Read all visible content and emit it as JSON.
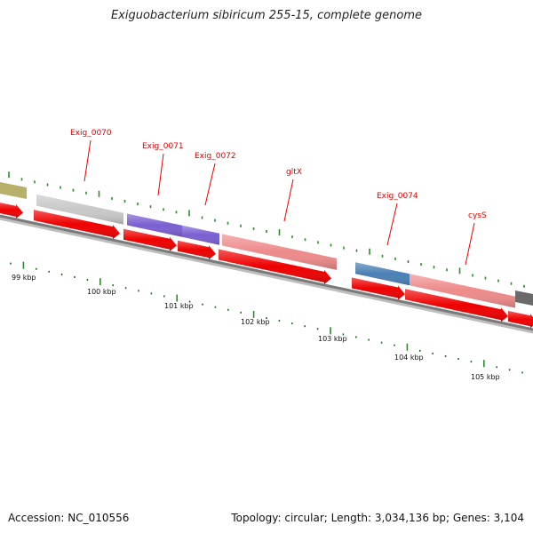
{
  "title": "Exiguobacterium sibiricum 255-15, complete genome",
  "footer": {
    "accession": "Accession: NC_010556",
    "summary": "Topology: circular; Length: 3,034,136 bp; Genes: 3,104"
  },
  "ticks": [
    {
      "label": "99 kbp"
    },
    {
      "label": "100 kbp"
    },
    {
      "label": "101 kbp"
    },
    {
      "label": "102 kbp"
    },
    {
      "label": "103 kbp"
    },
    {
      "label": "104 kbp"
    },
    {
      "label": "105 kbp"
    }
  ],
  "genes": [
    {
      "label": "Exig_0070",
      "color": "#c8c8c8"
    },
    {
      "label": "Exig_0071",
      "color": "#7a5fd1"
    },
    {
      "label": "Exig_0072",
      "color": "#7a5fd1"
    },
    {
      "label": "gltX",
      "color": "#ee8a8a"
    },
    {
      "label": "Exig_0074",
      "color": "#4a7fb5"
    },
    {
      "label": "cysS",
      "color": "#ee8a8a"
    }
  ],
  "colors": {
    "cds": "#ee0000",
    "tick": "#2a8a2a",
    "backbone": "#7a7a7a",
    "olive_feature": "#b6b06a",
    "dark_feature": "#6a6a6a"
  }
}
